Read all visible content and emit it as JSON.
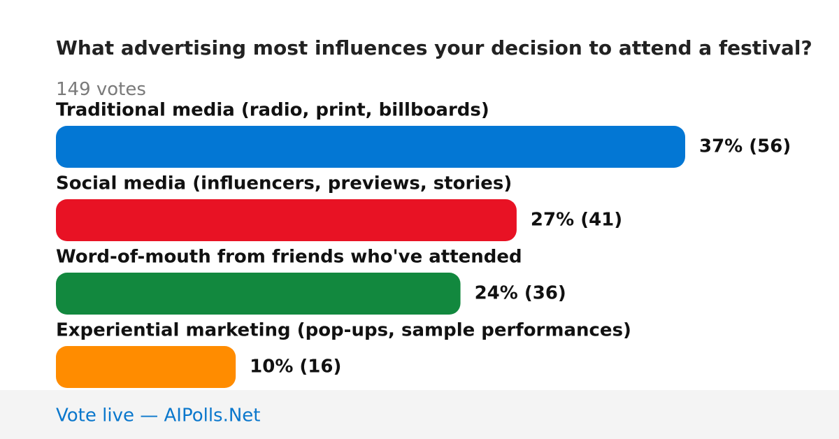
{
  "chart_data": {
    "type": "bar",
    "title": "What advertising most influences your decision to attend a festival?",
    "subtitle": "149 votes",
    "categories": [
      "Traditional media (radio, print, billboards)",
      "Social media (influencers, previews, stories)",
      "Word-of-mouth from friends who've attended",
      "Experiential marketing (pop-ups, sample performances)"
    ],
    "values": [
      56,
      41,
      36,
      16
    ],
    "value_labels": [
      "37% (56)",
      "27% (41)",
      "24% (36)",
      "10% (16)"
    ],
    "colors": [
      "#0377d4",
      "#e81224",
      "#12883e",
      "#ff8c00"
    ],
    "footer": "Vote live — AIPolls.Net"
  }
}
